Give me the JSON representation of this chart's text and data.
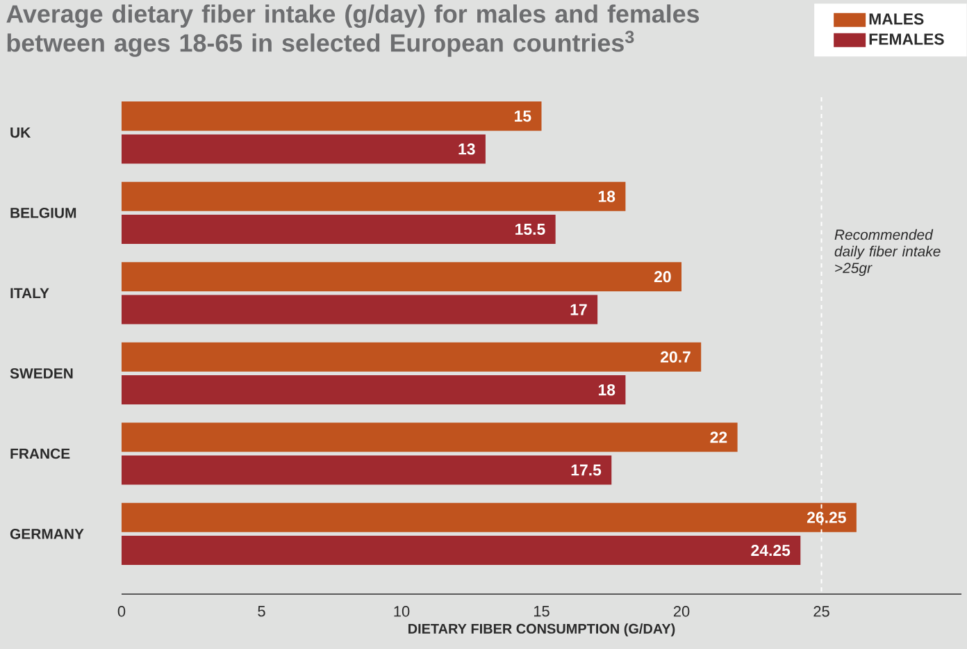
{
  "chart_data": {
    "type": "bar",
    "orientation": "horizontal",
    "title": "Average dietary fiber intake (g/day) for males and females between ages 18-65 in selected European countries$^{3}$",
    "xlabel": "DIETARY FIBER CONSUMPTION (G/DAY)",
    "categories": [
      "UK",
      "BELGIUM",
      "ITALY",
      "SWEDEN",
      "FRANCE",
      "GERMANY"
    ],
    "series": [
      {
        "name": "MALES",
        "color": "#c0531e",
        "values": [
          15,
          18,
          20,
          20.7,
          22,
          26.25
        ]
      },
      {
        "name": "FEMALES",
        "color": "#a0292f",
        "values": [
          13,
          15.5,
          17,
          18,
          17.5,
          24.25
        ]
      }
    ],
    "xlim": [
      0,
      30
    ],
    "xticks": [
      0,
      5,
      10,
      15,
      20,
      25
    ],
    "ref_lines": [
      {
        "axis": "x",
        "value": 25,
        "label": "Recommended daily fiber intake >25gr",
        "color": "#ffffff",
        "line_style": "dashed"
      }
    ],
    "data_labels": true,
    "legend": "top right",
    "grid": false
  }
}
